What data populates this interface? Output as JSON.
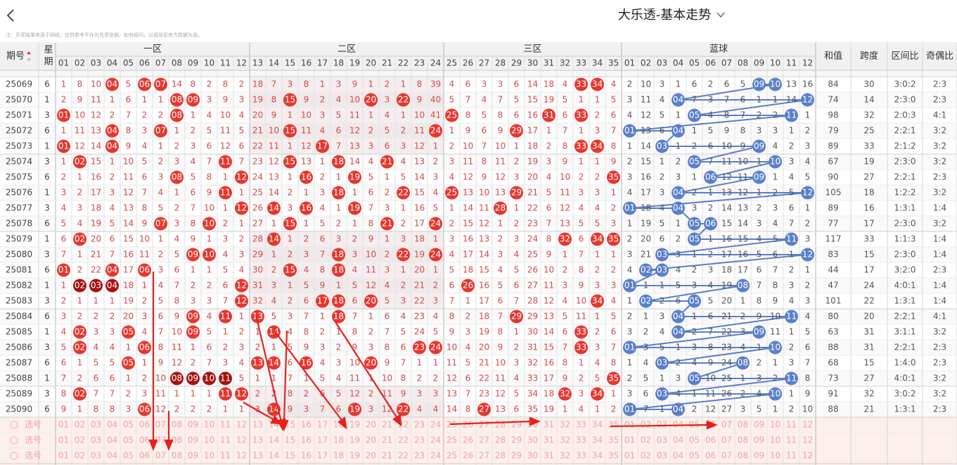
{
  "header": {
    "title": "大乐透-基本走势",
    "note": "注：开奖结果来源于网络，仅供参考不作为兑奖依据。如有疑问，以福体彩官方数据为准。"
  },
  "table": {
    "columns": {
      "issue": "期号",
      "weekday": "星期",
      "zones": [
        "一区",
        "二区",
        "三区"
      ],
      "blue": "蓝球",
      "sum": "和值",
      "span": "跨度",
      "zone_ratio": "区间比",
      "odd_even": "奇偶比"
    },
    "front_numbers": [
      "01",
      "02",
      "03",
      "04",
      "05",
      "06",
      "07",
      "08",
      "09",
      "10",
      "11",
      "12",
      "13",
      "14",
      "15",
      "16",
      "17",
      "18",
      "19",
      "20",
      "21",
      "22",
      "23",
      "24",
      "25",
      "26",
      "27",
      "28",
      "29",
      "30",
      "31",
      "32",
      "33",
      "34",
      "35"
    ],
    "back_numbers": [
      "01",
      "02",
      "03",
      "04",
      "05",
      "06",
      "07",
      "08",
      "09",
      "10",
      "11",
      "12"
    ],
    "rows": [
      {
        "issue": 25069,
        "weekday": 6,
        "front": [
          1,
          8,
          10,
          "04",
          5,
          "06",
          "07",
          14,
          8,
          2,
          8,
          2,
          18,
          7,
          3,
          8,
          1,
          3,
          9,
          1,
          2,
          1,
          8,
          39,
          4,
          6,
          3,
          3,
          6,
          14,
          18,
          4,
          "33",
          "34",
          4
        ],
        "back": [
          2,
          10,
          3,
          1,
          6,
          2,
          6,
          5,
          "09",
          "10",
          13,
          16
        ],
        "sum": 84,
        "span": 30,
        "zone_ratio": "3:0:2",
        "odd_even": "2:3"
      },
      {
        "issue": 25070,
        "weekday": 1,
        "front": [
          2,
          9,
          11,
          1,
          6,
          1,
          1,
          "08",
          "09",
          3,
          9,
          3,
          19,
          8,
          "15",
          9,
          2,
          4,
          10,
          "20",
          3,
          "22",
          9,
          40,
          5,
          7,
          4,
          7,
          5,
          15,
          19,
          5,
          1,
          1,
          5
        ],
        "back": [
          3,
          11,
          4,
          "04",
          7,
          3,
          7,
          6,
          1,
          1,
          14,
          "12"
        ],
        "sum": 74,
        "span": 14,
        "zone_ratio": "2:3:0",
        "odd_even": "2:3"
      },
      {
        "issue": 25071,
        "weekday": 3,
        "front": [
          "01",
          10,
          12,
          2,
          7,
          2,
          2,
          "08",
          1,
          4,
          10,
          4,
          20,
          9,
          1,
          10,
          3,
          5,
          11,
          1,
          4,
          1,
          10,
          41,
          "25",
          8,
          5,
          8,
          6,
          16,
          "31",
          6,
          "33",
          2,
          6
        ],
        "back": [
          4,
          12,
          5,
          1,
          "05",
          4,
          8,
          7,
          2,
          2,
          "11",
          1
        ],
        "sum": 98,
        "span": 32,
        "zone_ratio": "2:0:3",
        "odd_even": "4:1"
      },
      {
        "issue": 25072,
        "weekday": 6,
        "front": [
          1,
          11,
          13,
          "04",
          8,
          3,
          "07",
          1,
          2,
          5,
          11,
          5,
          21,
          10,
          "15",
          11,
          4,
          6,
          12,
          2,
          5,
          2,
          11,
          "24",
          1,
          9,
          6,
          9,
          "29",
          17,
          1,
          7,
          1,
          3,
          7
        ],
        "back": [
          "01",
          13,
          6,
          "04",
          1,
          5,
          9,
          8,
          3,
          3,
          1,
          2
        ],
        "sum": 79,
        "span": 25,
        "zone_ratio": "2:2:1",
        "odd_even": "3:2"
      },
      {
        "issue": 25073,
        "weekday": 1,
        "front": [
          "01",
          12,
          14,
          "04",
          9,
          4,
          1,
          2,
          3,
          6,
          12,
          6,
          22,
          11,
          1,
          12,
          "17",
          7,
          13,
          3,
          6,
          3,
          12,
          1,
          2,
          10,
          7,
          10,
          1,
          18,
          2,
          8,
          "33",
          "34",
          8
        ],
        "back": [
          1,
          14,
          "03",
          1,
          2,
          6,
          10,
          9,
          "09",
          4,
          2,
          3
        ],
        "sum": 89,
        "span": 33,
        "zone_ratio": "2:1:2",
        "odd_even": "3:2"
      },
      {
        "issue": 25074,
        "weekday": 3,
        "front": [
          1,
          "02",
          15,
          1,
          10,
          5,
          2,
          3,
          4,
          7,
          "11",
          7,
          23,
          12,
          "15",
          13,
          1,
          "18",
          14,
          4,
          "21",
          4,
          13,
          2,
          3,
          11,
          8,
          11,
          2,
          19,
          3,
          9,
          1,
          1,
          9
        ],
        "back": [
          2,
          15,
          1,
          2,
          "05",
          7,
          11,
          10,
          1,
          "10",
          3,
          4
        ],
        "sum": 67,
        "span": 19,
        "zone_ratio": "2:3:0",
        "odd_even": "3:2"
      },
      {
        "issue": 25075,
        "weekday": 6,
        "front": [
          2,
          1,
          16,
          2,
          11,
          6,
          3,
          "08",
          5,
          8,
          1,
          "12",
          24,
          13,
          1,
          "16",
          2,
          1,
          "19",
          5,
          1,
          5,
          14,
          3,
          4,
          12,
          9,
          12,
          3,
          20,
          4,
          10,
          2,
          2,
          "35"
        ],
        "back": [
          3,
          16,
          2,
          3,
          1,
          "06",
          12,
          11,
          "09",
          1,
          4,
          5
        ],
        "sum": 90,
        "span": 27,
        "zone_ratio": "2:2:1",
        "odd_even": "2:3"
      },
      {
        "issue": 25076,
        "weekday": 1,
        "front": [
          3,
          2,
          17,
          3,
          12,
          7,
          4,
          1,
          6,
          9,
          "11",
          1,
          25,
          14,
          2,
          1,
          3,
          "18",
          1,
          6,
          2,
          "22",
          15,
          4,
          "25",
          13,
          10,
          13,
          "29",
          21,
          5,
          11,
          3,
          3,
          1
        ],
        "back": [
          4,
          17,
          3,
          "04",
          2,
          1,
          13,
          12,
          1,
          2,
          5,
          "12"
        ],
        "sum": 105,
        "span": 18,
        "zone_ratio": "1:2:2",
        "odd_even": "3:2"
      },
      {
        "issue": 25077,
        "weekday": 3,
        "front": [
          4,
          3,
          18,
          4,
          13,
          8,
          5,
          2,
          7,
          10,
          1,
          "12",
          26,
          "14",
          3,
          "16",
          4,
          1,
          "19",
          7,
          3,
          1,
          16,
          5,
          1,
          14,
          11,
          "28",
          1,
          22,
          6,
          12,
          4,
          4,
          2
        ],
        "back": [
          "01",
          18,
          4,
          "04",
          3,
          2,
          14,
          13,
          2,
          3,
          6,
          1
        ],
        "sum": 89,
        "span": 16,
        "zone_ratio": "1:3:1",
        "odd_even": "1:4"
      },
      {
        "issue": 25078,
        "weekday": 6,
        "front": [
          5,
          4,
          19,
          5,
          14,
          9,
          "07",
          3,
          8,
          "10",
          2,
          1,
          27,
          1,
          "15",
          1,
          5,
          2,
          1,
          8,
          "21",
          2,
          17,
          "24",
          2,
          15,
          12,
          1,
          2,
          23,
          7,
          13,
          5,
          5,
          3
        ],
        "back": [
          1,
          19,
          5,
          1,
          "05",
          "06",
          15,
          14,
          3,
          4,
          7,
          2
        ],
        "sum": 77,
        "span": 17,
        "zone_ratio": "2:3:0",
        "odd_even": "3:2"
      },
      {
        "issue": 25079,
        "weekday": 1,
        "front": [
          6,
          "02",
          20,
          6,
          15,
          10,
          1,
          4,
          9,
          1,
          3,
          2,
          28,
          "14",
          1,
          2,
          6,
          3,
          2,
          9,
          1,
          3,
          18,
          1,
          3,
          16,
          13,
          2,
          3,
          24,
          8,
          "32",
          6,
          "34",
          "35"
        ],
        "back": [
          2,
          20,
          6,
          2,
          "05",
          1,
          16,
          15,
          4,
          5,
          "11",
          3
        ],
        "sum": 117,
        "span": 33,
        "zone_ratio": "1:1:3",
        "odd_even": "1:4"
      },
      {
        "issue": 25080,
        "weekday": 3,
        "front": [
          7,
          1,
          21,
          7,
          16,
          11,
          2,
          5,
          "09",
          "10",
          4,
          3,
          29,
          1,
          2,
          3,
          7,
          "18",
          3,
          10,
          2,
          "22",
          19,
          "24",
          4,
          17,
          14,
          3,
          4,
          25,
          9,
          1,
          7,
          1,
          1
        ],
        "back": [
          3,
          21,
          "03",
          3,
          1,
          2,
          17,
          16,
          5,
          6,
          1,
          "12"
        ],
        "sum": 83,
        "span": 15,
        "zone_ratio": "2:3:0",
        "odd_even": "1:4"
      },
      {
        "issue": 25081,
        "weekday": 6,
        "front": [
          "01",
          2,
          22,
          "04",
          17,
          "06",
          3,
          6,
          1,
          1,
          5,
          4,
          30,
          2,
          "15",
          4,
          8,
          "18",
          4,
          11,
          3,
          1,
          20,
          1,
          5,
          18,
          15,
          4,
          5,
          26,
          10,
          2,
          8,
          2,
          2
        ],
        "back": [
          4,
          "02",
          "03",
          4,
          2,
          3,
          18,
          17,
          6,
          7,
          2,
          1
        ],
        "sum": 44,
        "span": 17,
        "zone_ratio": "3:2:0",
        "odd_even": "2:3"
      },
      {
        "issue": 25082,
        "weekday": 1,
        "front": [
          1,
          "02",
          "03",
          "04",
          18,
          1,
          4,
          7,
          2,
          2,
          6,
          "12",
          31,
          3,
          1,
          5,
          9,
          1,
          5,
          12,
          4,
          2,
          21,
          2,
          6,
          "26",
          16,
          5,
          6,
          27,
          11,
          3,
          9,
          3,
          3
        ],
        "back": [
          "01",
          1,
          1,
          5,
          3,
          4,
          19,
          "08",
          7,
          8,
          3,
          2
        ],
        "sum": 47,
        "span": 24,
        "zone_ratio": "4:0:1",
        "odd_even": "1:4"
      },
      {
        "issue": 25083,
        "weekday": 3,
        "front": [
          2,
          1,
          1,
          1,
          19,
          2,
          5,
          8,
          3,
          3,
          7,
          "12",
          32,
          4,
          2,
          6,
          "17",
          "18",
          6,
          "20",
          5,
          3,
          22,
          3,
          7,
          1,
          17,
          6,
          7,
          28,
          12,
          4,
          10,
          "34",
          4
        ],
        "back": [
          1,
          "02",
          2,
          6,
          "05",
          5,
          20,
          1,
          8,
          9,
          4,
          3
        ],
        "sum": 101,
        "span": 22,
        "zone_ratio": "1:3:1",
        "odd_even": "1:4"
      },
      {
        "issue": 25084,
        "weekday": 6,
        "front": [
          3,
          2,
          2,
          2,
          20,
          3,
          6,
          9,
          "09",
          4,
          "11",
          1,
          "13",
          5,
          3,
          7,
          1,
          "18",
          7,
          1,
          6,
          4,
          23,
          4,
          8,
          2,
          18,
          7,
          "29",
          29,
          13,
          5,
          11,
          1,
          5
        ],
        "back": [
          2,
          1,
          3,
          "04",
          1,
          6,
          21,
          2,
          9,
          10,
          "11",
          4
        ],
        "sum": 80,
        "span": 20,
        "zone_ratio": "2:2:1",
        "odd_even": "4:1"
      },
      {
        "issue": 25085,
        "weekday": 1,
        "front": [
          4,
          "02",
          3,
          3,
          "05",
          4,
          7,
          10,
          "09",
          5,
          1,
          2,
          1,
          "14",
          4,
          8,
          2,
          1,
          8,
          2,
          7,
          5,
          24,
          5,
          9,
          3,
          19,
          8,
          1,
          30,
          14,
          6,
          "33",
          2,
          6
        ],
        "back": [
          3,
          2,
          4,
          "04",
          2,
          7,
          22,
          3,
          "09",
          11,
          1,
          5
        ],
        "sum": 63,
        "span": 31,
        "zone_ratio": "3:1:1",
        "odd_even": "3:2"
      },
      {
        "issue": 25086,
        "weekday": 3,
        "front": [
          5,
          "02",
          4,
          4,
          1,
          "06",
          8,
          11,
          1,
          6,
          2,
          3,
          2,
          1,
          5,
          9,
          3,
          2,
          9,
          3,
          8,
          6,
          "23",
          "24",
          10,
          4,
          20,
          9,
          2,
          31,
          15,
          7,
          "33",
          3,
          7
        ],
        "back": [
          "01",
          3,
          5,
          1,
          3,
          8,
          23,
          4,
          1,
          "10",
          2,
          6
        ],
        "sum": 88,
        "span": 31,
        "zone_ratio": "2:2:1",
        "odd_even": "2:3"
      },
      {
        "issue": 25087,
        "weekday": 6,
        "front": [
          6,
          1,
          5,
          5,
          "05",
          1,
          9,
          12,
          2,
          7,
          3,
          4,
          "13",
          "14",
          6,
          "16",
          4,
          3,
          10,
          "20",
          9,
          7,
          1,
          1,
          11,
          5,
          21,
          10,
          3,
          32,
          16,
          8,
          1,
          4,
          8
        ],
        "back": [
          1,
          4,
          "03",
          2,
          4,
          9,
          24,
          "08",
          2,
          1,
          3,
          7
        ],
        "sum": 68,
        "span": 15,
        "zone_ratio": "1:4:0",
        "odd_even": "2:3"
      },
      {
        "issue": 25088,
        "weekday": 1,
        "front": [
          7,
          2,
          6,
          6,
          1,
          2,
          10,
          "08",
          "09",
          "10",
          "11",
          5,
          1,
          1,
          7,
          1,
          5,
          4,
          11,
          1,
          10,
          8,
          2,
          2,
          12,
          6,
          22,
          11,
          4,
          33,
          17,
          9,
          2,
          5,
          "35"
        ],
        "back": [
          2,
          5,
          1,
          3,
          "05",
          10,
          25,
          1,
          3,
          2,
          "11",
          8
        ],
        "sum": 73,
        "span": 27,
        "zone_ratio": "4:0:1",
        "odd_even": "3:2"
      },
      {
        "issue": 25089,
        "weekday": 3,
        "front": [
          8,
          "02",
          7,
          7,
          2,
          3,
          11,
          1,
          1,
          1,
          "11",
          "12",
          2,
          2,
          8,
          2,
          6,
          5,
          12,
          2,
          11,
          9,
          3,
          3,
          13,
          7,
          23,
          12,
          5,
          34,
          18,
          "32",
          3,
          "34",
          1
        ],
        "back": [
          3,
          6,
          "03",
          4,
          1,
          11,
          26,
          2,
          4,
          "10",
          1,
          9
        ],
        "sum": 91,
        "span": 32,
        "zone_ratio": "3:0:2",
        "odd_even": "3:2"
      },
      {
        "issue": 25090,
        "weekday": 6,
        "front": [
          9,
          1,
          8,
          8,
          3,
          "06",
          12,
          2,
          2,
          2,
          1,
          1,
          3,
          "14",
          9,
          3,
          7,
          6,
          "19",
          3,
          12,
          "22",
          4,
          4,
          14,
          8,
          "27",
          13,
          6,
          35,
          19,
          1,
          4,
          1,
          2
        ],
        "back": [
          "01",
          7,
          1,
          "04",
          2,
          12,
          27,
          3,
          5,
          1,
          2,
          10
        ],
        "sum": 88,
        "span": 21,
        "zone_ratio": "1:3:1",
        "odd_even": "2:3"
      }
    ],
    "pick_rows": [
      "选号",
      "选号",
      "选号"
    ]
  }
}
